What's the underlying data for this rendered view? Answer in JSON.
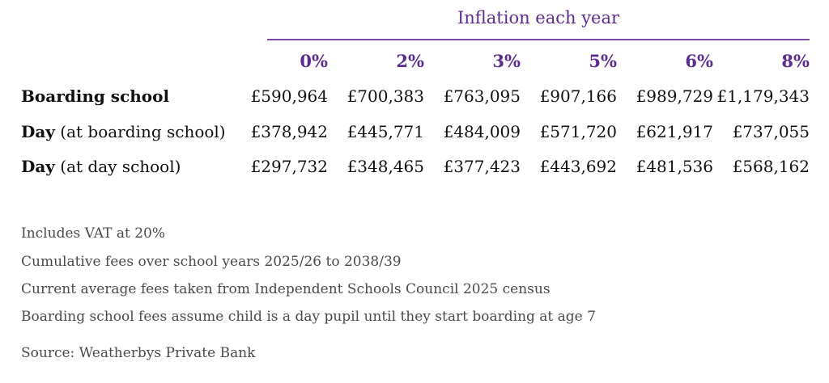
{
  "table": {
    "group_header": "Inflation each year",
    "columns": [
      "0%",
      "2%",
      "3%",
      "5%",
      "6%",
      "8%"
    ],
    "rows": [
      {
        "label_bold": "Boarding school",
        "label_rest": "",
        "values": [
          "£590,964",
          "£700,383",
          "£763,095",
          "£907,166",
          "£989,729",
          "£1,179,343"
        ]
      },
      {
        "label_bold": "Day",
        "label_rest": " (at boarding school)",
        "values": [
          "£378,942",
          "£445,771",
          "£484,009",
          "£571,720",
          "£621,917",
          "£737,055"
        ]
      },
      {
        "label_bold": "Day",
        "label_rest": " (at day school)",
        "values": [
          "£297,732",
          "£348,465",
          "£377,423",
          "£443,692",
          "£481,536",
          "£568,162"
        ]
      }
    ]
  },
  "notes": [
    "Includes VAT at 20%",
    "Cumulative fees over school years 2025/26 to 2038/39",
    "Current average fees taken from Independent Schools Council 2025 census",
    "Boarding school fees assume child is a day pupil until they start boarding at age 7"
  ],
  "source": "Source: Weatherbys Private Bank",
  "colors": {
    "accent": "#5b2d8e",
    "rule": "#7b4aa8",
    "text": "#111111",
    "note_text": "#4a4a4a"
  }
}
